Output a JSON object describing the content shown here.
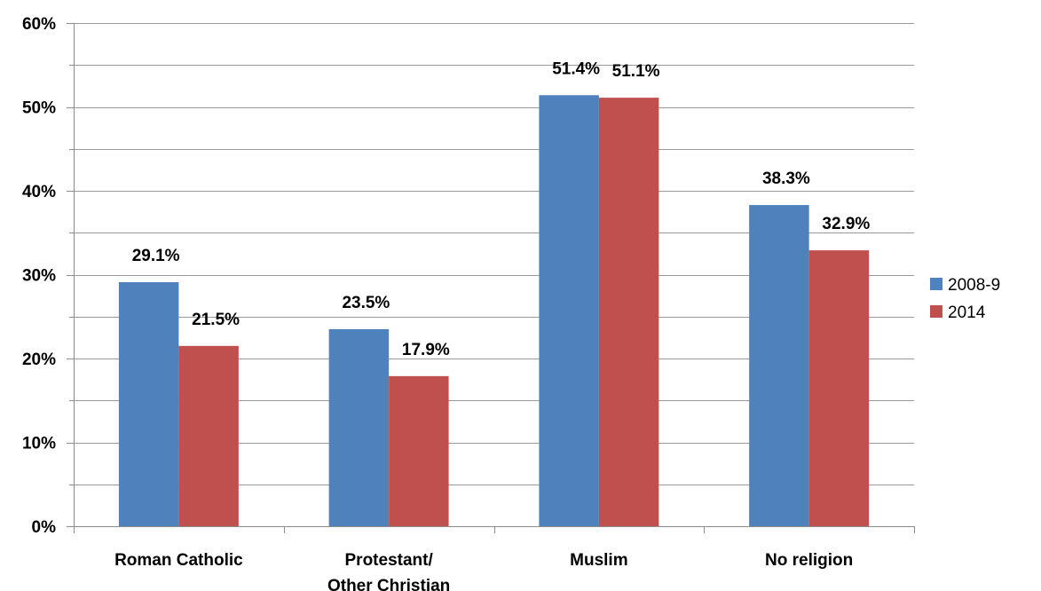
{
  "chart_data": {
    "type": "bar",
    "categories": [
      "Roman Catholic",
      "Protestant/\nOther Christian",
      "Muslim",
      "No religion"
    ],
    "series": [
      {
        "name": "2008-9",
        "color": "#4f81bd",
        "values": [
          29.1,
          23.5,
          51.4,
          38.3
        ],
        "labels": [
          "29.1%",
          "23.5%",
          "51.4%",
          "38.3%"
        ]
      },
      {
        "name": "2014",
        "color": "#c0504d",
        "values": [
          21.5,
          17.9,
          51.1,
          32.9
        ],
        "labels": [
          "21.5%",
          "17.9%",
          "51.1%",
          "32.9%"
        ]
      }
    ],
    "ylim": [
      0,
      60
    ],
    "yticks": [
      0,
      10,
      20,
      30,
      40,
      50,
      60
    ],
    "ytick_labels": [
      "0%",
      "10%",
      "20%",
      "30%",
      "40%",
      "50%",
      "60%"
    ],
    "grid": true,
    "legend_position": "right"
  }
}
